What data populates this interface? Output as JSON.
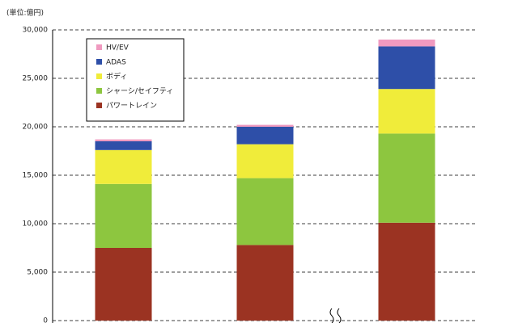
{
  "chart_data": {
    "type": "bar",
    "stacked": true,
    "unit_label": "(単位:億円)",
    "categories": [
      null,
      null,
      null
    ],
    "series": [
      {
        "name": "パワートレイン",
        "color": "#9b3322",
        "values": [
          7500,
          7800,
          10100
        ]
      },
      {
        "name": "シャーシ/セイフティ",
        "color": "#8dc63f",
        "values": [
          6600,
          6900,
          9200
        ]
      },
      {
        "name": "ボディ",
        "color": "#f0ec3a",
        "values": [
          3500,
          3500,
          4600
        ]
      },
      {
        "name": "ADAS",
        "color": "#2e4fa8",
        "values": [
          900,
          1800,
          4400
        ]
      },
      {
        "name": "HV/EV",
        "color": "#f09ac0",
        "values": [
          200,
          200,
          700
        ]
      }
    ],
    "ylim": [
      0,
      30000
    ],
    "yticks": [
      0,
      {
        "value": 5000,
        "label": "5,000"
      },
      {
        "value": 10000,
        "label": "10,000"
      },
      {
        "value": 15000,
        "label": "15,000"
      },
      {
        "value": 20000,
        "label": "20,000"
      },
      {
        "value": 25000,
        "label": "25,000"
      },
      {
        "value": 30000,
        "label": "30,000"
      }
    ],
    "grid": true,
    "legend": "upper-left"
  }
}
